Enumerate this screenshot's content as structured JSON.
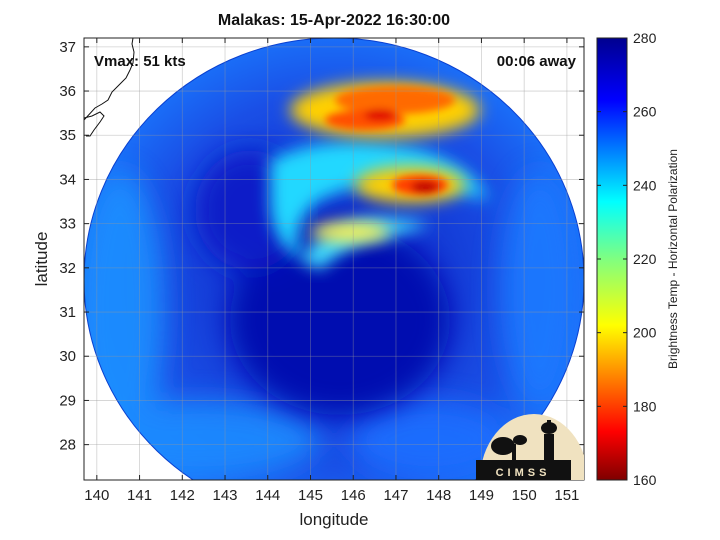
{
  "chart_data": {
    "type": "heatmap",
    "title": "Malakas: 15-Apr-2022 16:30:00",
    "xlabel": "longitude",
    "ylabel": "latitude",
    "xlim": [
      139.7,
      151.4
    ],
    "ylim": [
      27.2,
      37.2
    ],
    "xticks": [
      140,
      141,
      142,
      143,
      144,
      145,
      146,
      147,
      148,
      149,
      150,
      151
    ],
    "yticks": [
      28,
      29,
      30,
      31,
      32,
      33,
      34,
      35,
      36,
      37
    ],
    "grid": true,
    "colorbar": {
      "label": "Brightness Temp - Horizontal Polarization",
      "range": [
        160,
        280
      ],
      "ticks": [
        160,
        180,
        200,
        220,
        240,
        260,
        280
      ],
      "colormap": "jet"
    },
    "annotations": [
      {
        "text": "Vmax: 51 kts",
        "position": "top-left"
      },
      {
        "text": "00:06 away",
        "position": "top-right"
      }
    ],
    "swath": {
      "center_lon": 145.6,
      "center_lat": 32.2,
      "shape": "circular"
    },
    "storm_center": {
      "lon": 145.9,
      "lat": 31.6
    },
    "cold_features_bt": [
      {
        "lon": 147.3,
        "lat": 35.7,
        "bt": 188
      },
      {
        "lon": 146.6,
        "lat": 35.3,
        "bt": 195
      },
      {
        "lon": 147.9,
        "lat": 33.9,
        "bt": 180
      },
      {
        "lon": 147.2,
        "lat": 33.9,
        "bt": 198
      },
      {
        "lon": 146.8,
        "lat": 32.9,
        "bt": 212
      }
    ]
  },
  "logo": {
    "text": "CIMSS"
  }
}
